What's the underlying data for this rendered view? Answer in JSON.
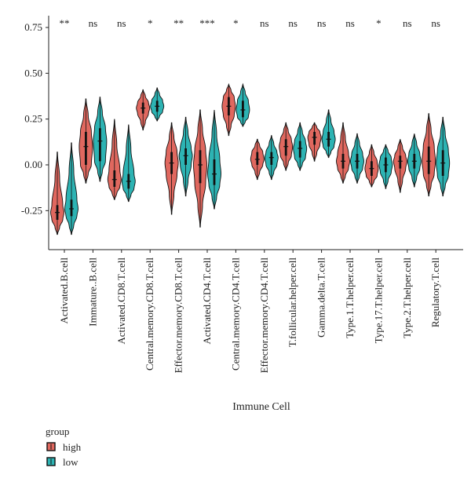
{
  "chart_data": {
    "type": "violin",
    "title": "",
    "xlabel": "Immune Cell",
    "ylabel": "",
    "ylim": [
      -0.4,
      0.78
    ],
    "yticks": [
      -0.25,
      0.0,
      0.25,
      0.5,
      0.75
    ],
    "ytick_labels": [
      "-0.25",
      "0.00",
      "0.25",
      "0.50",
      "0.75"
    ],
    "grid": false,
    "legend": {
      "title": "group",
      "placement": "bottom-left",
      "entries": [
        {
          "name": "high",
          "color": "#e0685f"
        },
        {
          "name": "low",
          "color": "#2db3b3"
        }
      ]
    },
    "categories": [
      "Activated.B.cell",
      "Immature..B.cell",
      "Activated.CD8.T.cell",
      "Central.memory.CD8.T.cell",
      "Effector.memory.CD8.T.cell",
      "Activated.CD4.T.cell",
      "Central.memory.CD4.T.cell",
      "Effector.memory.CD4.T.cell",
      "T.follicular.helper.cell",
      "Gamma.delta.T.cell",
      "Type.1.T.helper.cell",
      "Type.17.T.helper.cell",
      "Type.2.T.helper.cell",
      "Regulatory.T.cell"
    ],
    "significance": [
      "**",
      "ns",
      "ns",
      "*",
      "**",
      "***",
      "*",
      "ns",
      "ns",
      "ns",
      "ns",
      "*",
      "ns",
      "ns"
    ],
    "series": [
      {
        "name": "high",
        "color": "#e0685f",
        "min": [
          -0.38,
          -0.1,
          -0.19,
          0.19,
          -0.27,
          -0.34,
          0.16,
          -0.08,
          -0.03,
          0.02,
          -0.1,
          -0.12,
          -0.15,
          -0.17
        ],
        "q1": [
          -0.3,
          0.0,
          -0.12,
          0.28,
          -0.05,
          -0.1,
          0.27,
          0.0,
          0.05,
          0.11,
          -0.02,
          -0.06,
          -0.02,
          -0.05
        ],
        "median": [
          -0.26,
          0.1,
          -0.08,
          0.31,
          0.01,
          0.0,
          0.32,
          0.03,
          0.1,
          0.15,
          0.02,
          -0.02,
          0.02,
          0.02
        ],
        "q3": [
          -0.22,
          0.18,
          -0.03,
          0.34,
          0.07,
          0.08,
          0.37,
          0.07,
          0.14,
          0.18,
          0.06,
          0.02,
          0.05,
          0.1
        ],
        "max": [
          0.07,
          0.36,
          0.25,
          0.41,
          0.23,
          0.3,
          0.44,
          0.14,
          0.23,
          0.23,
          0.23,
          0.11,
          0.14,
          0.28
        ]
      },
      {
        "name": "low",
        "color": "#2db3b3",
        "min": [
          -0.38,
          -0.09,
          -0.2,
          0.24,
          -0.17,
          -0.24,
          0.21,
          -0.08,
          -0.03,
          0.04,
          -0.1,
          -0.13,
          -0.12,
          -0.17
        ],
        "q1": [
          -0.28,
          0.02,
          -0.13,
          0.29,
          0.0,
          -0.11,
          0.26,
          0.0,
          0.04,
          0.1,
          -0.02,
          -0.04,
          -0.02,
          -0.06
        ],
        "median": [
          -0.24,
          0.13,
          -0.09,
          0.32,
          0.05,
          -0.05,
          0.3,
          0.04,
          0.09,
          0.14,
          0.02,
          0.0,
          0.02,
          0.01
        ],
        "q3": [
          -0.19,
          0.2,
          -0.05,
          0.35,
          0.09,
          0.03,
          0.35,
          0.07,
          0.13,
          0.18,
          0.06,
          0.04,
          0.06,
          0.08
        ],
        "max": [
          0.12,
          0.37,
          0.22,
          0.42,
          0.26,
          0.3,
          0.44,
          0.16,
          0.23,
          0.3,
          0.17,
          0.11,
          0.17,
          0.26
        ]
      }
    ]
  }
}
